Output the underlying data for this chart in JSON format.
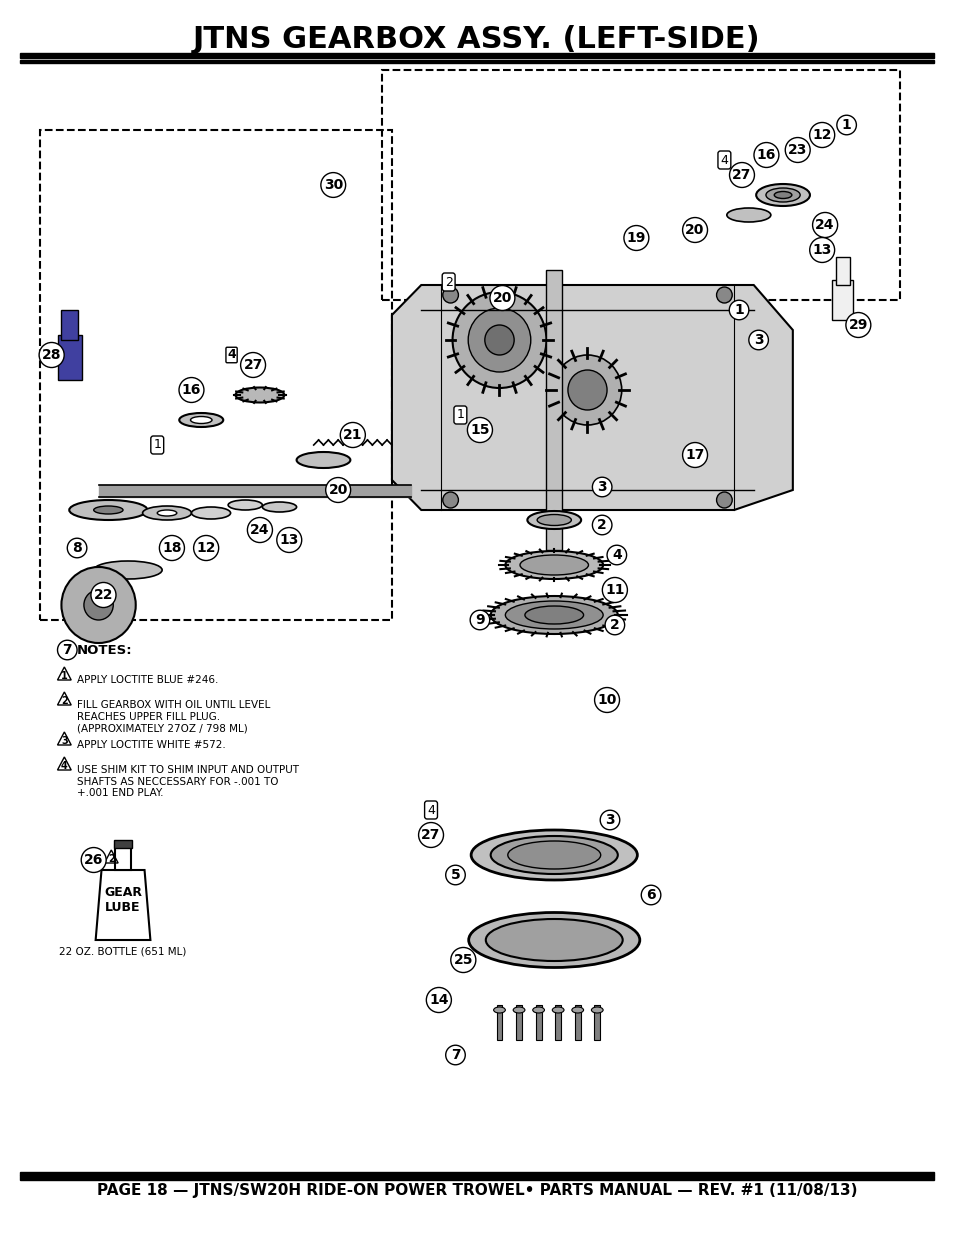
{
  "title": "JTNS GEARBOX ASSY. (LEFT-SIDE)",
  "footer": "PAGE 18 — JTNS/SW20H RIDE-ON POWER TROWEL• PARTS MANUAL — REV. #1 (11/08/13)",
  "bg_color": "#ffffff",
  "title_color": "#000000",
  "title_fontsize": 22,
  "footer_fontsize": 11,
  "notes_title": "NOTES:",
  "notes": [
    {
      "num": 1,
      "text": "APPLY LOCTITE BLUE #246."
    },
    {
      "num": 2,
      "text": "FILL GEARBOX WITH OIL UNTIL LEVEL\nREACHES UPPER FILL PLUG.\n(APPROXIMATELY 27OZ / 798 ML)"
    },
    {
      "num": 3,
      "text": "APPLY LOCTITE WHITE #572."
    },
    {
      "num": 4,
      "text": "USE SHIM KIT TO SHIM INPUT AND OUTPUT\nSHAFTS AS NECCESSARY FOR -.001 TO\n+.001 END PLAY."
    }
  ],
  "bottle_label_line1": "GEAR",
  "bottle_label_line2": "LUBE",
  "bottle_text": "22 OZ. BOTTLE (651 ML)",
  "bottle_note_num": "26"
}
